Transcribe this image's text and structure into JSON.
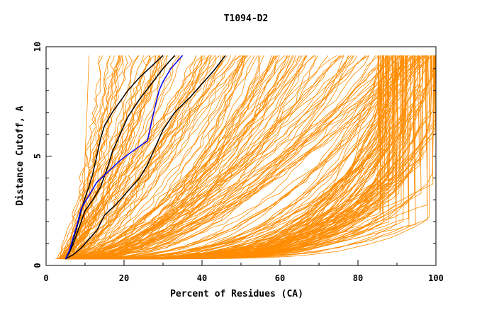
{
  "chart_data": {
    "type": "line",
    "title": "T1094-D2",
    "xlabel": "Percent of Residues (CA)",
    "ylabel": "Distance Cutoff, A",
    "xlim": [
      0,
      100
    ],
    "ylim": [
      0,
      10
    ],
    "x_ticks": [
      "0",
      "20",
      "40",
      "60",
      "80",
      "100"
    ],
    "y_ticks": [
      "0",
      "5",
      "10"
    ],
    "colors": {
      "bulk": "#ff8c00",
      "highlight_black": "#000000",
      "highlight_blue": "#0000ff",
      "frame": "#000000"
    },
    "highlighted_series": [
      {
        "color": "black",
        "points": [
          [
            5,
            0.3
          ],
          [
            6,
            0.6
          ],
          [
            7,
            1.2
          ],
          [
            8,
            1.8
          ],
          [
            9,
            2.5
          ],
          [
            10,
            3.1
          ],
          [
            11,
            3.6
          ],
          [
            12,
            4.2
          ],
          [
            13,
            5.0
          ],
          [
            14,
            5.8
          ],
          [
            15,
            6.4
          ],
          [
            17,
            7.0
          ],
          [
            19,
            7.5
          ],
          [
            21,
            8.0
          ],
          [
            24,
            8.6
          ],
          [
            27,
            9.1
          ],
          [
            30,
            9.6
          ]
        ]
      },
      {
        "color": "black",
        "points": [
          [
            5,
            0.3
          ],
          [
            6,
            0.6
          ],
          [
            7,
            1.0
          ],
          [
            8,
            1.5
          ],
          [
            9,
            2.0
          ],
          [
            10,
            2.5
          ],
          [
            12,
            3.0
          ],
          [
            14,
            3.6
          ],
          [
            15,
            4.1
          ],
          [
            16,
            4.6
          ],
          [
            17,
            5.2
          ],
          [
            19,
            6.0
          ],
          [
            21,
            6.8
          ],
          [
            24,
            7.6
          ],
          [
            27,
            8.3
          ],
          [
            30,
            9.0
          ],
          [
            33,
            9.6
          ]
        ]
      },
      {
        "color": "black",
        "points": [
          [
            5,
            0.3
          ],
          [
            7,
            0.5
          ],
          [
            9,
            0.8
          ],
          [
            11,
            1.2
          ],
          [
            13,
            1.6
          ],
          [
            15,
            2.3
          ],
          [
            18,
            2.8
          ],
          [
            21,
            3.4
          ],
          [
            24,
            4.0
          ],
          [
            26,
            4.6
          ],
          [
            28,
            5.4
          ],
          [
            30,
            6.2
          ],
          [
            33,
            7.0
          ],
          [
            37,
            7.7
          ],
          [
            40,
            8.3
          ],
          [
            43,
            8.9
          ],
          [
            46,
            9.6
          ]
        ]
      },
      {
        "color": "blue",
        "points": [
          [
            5,
            0.3
          ],
          [
            6,
            0.7
          ],
          [
            7,
            1.3
          ],
          [
            8,
            1.9
          ],
          [
            9,
            2.6
          ],
          [
            11,
            3.2
          ],
          [
            13,
            3.8
          ],
          [
            16,
            4.3
          ],
          [
            19,
            4.8
          ],
          [
            22,
            5.2
          ],
          [
            26,
            5.7
          ],
          [
            27,
            6.5
          ],
          [
            28,
            7.3
          ],
          [
            29,
            8.0
          ],
          [
            30,
            8.4
          ],
          [
            32,
            9.0
          ],
          [
            35,
            9.6
          ]
        ]
      }
    ],
    "bulk_series_note": ""
  }
}
